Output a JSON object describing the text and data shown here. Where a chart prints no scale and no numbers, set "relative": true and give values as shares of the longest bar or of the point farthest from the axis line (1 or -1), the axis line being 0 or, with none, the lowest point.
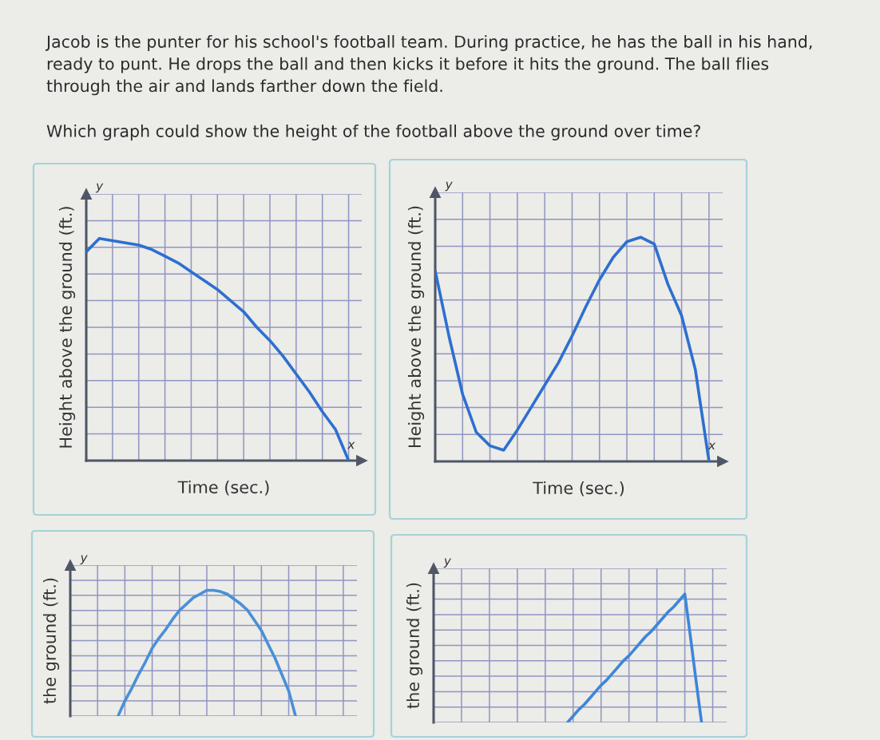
{
  "chart_data": [
    {
      "type": "line",
      "title": "Jacob is the punter for his school's football team. During practice, he has the ball in his hand, ready to punt. He drops the ball and then kicks it before it hits the ground. The ball flies through the air and lands farther down the field.",
      "subtitle": "Which graph could show the height of the football above the ground over time?",
      "xlabel": "Time (sec.)",
      "ylabel": "Height above the ground (ft.)",
      "annotations": [
        "y",
        "x"
      ],
      "relative": true,
      "grid": true,
      "tick_labels": false,
      "categories": [
        null,
        null,
        null,
        null,
        null,
        null,
        null,
        null,
        null,
        null,
        null,
        null,
        null,
        null,
        null,
        null,
        null,
        null,
        null,
        null,
        null
      ],
      "series": [
        {
          "color": "#2e6fd0",
          "values": [
            0.94,
            1.0,
            0.99,
            0.98,
            0.97,
            0.95,
            0.92,
            0.89,
            0.85,
            0.81,
            0.77,
            0.72,
            0.67,
            0.6,
            0.54,
            0.47,
            0.39,
            0.31,
            0.22,
            0.14,
            0
          ]
        }
      ]
    },
    {
      "type": "line",
      "xlabel": "Time (sec.)",
      "ylabel": "Height above the ground (ft.)",
      "annotations": [
        "y",
        "x"
      ],
      "relative": true,
      "grid": true,
      "tick_labels": false,
      "categories": [
        null,
        null,
        null,
        null,
        null,
        null,
        null,
        null,
        null,
        null,
        null,
        null,
        null,
        null,
        null,
        null,
        null,
        null,
        null,
        null,
        null
      ],
      "series": [
        {
          "color": "#2e6fd0",
          "values": [
            0.85,
            0.56,
            0.3,
            0.13,
            0.07,
            0.05,
            0.14,
            0.24,
            0.34,
            0.44,
            0.56,
            0.69,
            0.81,
            0.91,
            0.98,
            1.0,
            0.97,
            0.79,
            0.65,
            0.41,
            0
          ]
        }
      ]
    },
    {
      "type": "line",
      "ylabel": "the ground (ft.)",
      "annotations": [
        "y"
      ],
      "relative": true,
      "grid": true,
      "tick_labels": false,
      "categories": [
        null,
        null,
        null,
        null,
        null,
        null,
        null,
        null,
        null,
        null,
        null,
        null,
        null,
        null,
        null,
        null,
        null,
        null,
        null,
        null,
        null,
        null,
        null,
        null,
        null,
        null,
        null,
        null,
        null,
        null,
        null,
        null,
        null,
        null,
        null,
        null,
        null,
        null,
        null,
        null,
        null
      ],
      "series": [
        {
          "color": "#4a8fd8",
          "values": [
            null,
            null,
            null,
            null,
            null,
            null,
            null,
            0,
            0.12,
            0.22,
            0.33,
            0.43,
            0.54,
            0.62,
            0.69,
            0.77,
            0.84,
            0.89,
            0.94,
            0.97,
            1.0,
            1.0,
            0.99,
            0.97,
            0.93,
            0.89,
            0.84,
            0.76,
            0.68,
            0.57,
            0.46,
            0.33,
            0.2,
            0,
            null,
            null,
            null,
            null,
            null,
            null,
            null
          ]
        }
      ]
    },
    {
      "type": "line",
      "ylabel": "the ground (ft.)",
      "annotations": [
        "y"
      ],
      "relative": true,
      "grid": true,
      "tick_labels": false,
      "categories": [
        null,
        null,
        null,
        null,
        null,
        null,
        null,
        null,
        null,
        null,
        null,
        null,
        null,
        null,
        null,
        null,
        null,
        null,
        null,
        null,
        null,
        null,
        null,
        null,
        null,
        null,
        null,
        null,
        null,
        null,
        null,
        null,
        null,
        null,
        null,
        null,
        null,
        null,
        null,
        null,
        null,
        null,
        null,
        null,
        null,
        null,
        null,
        null,
        null,
        null,
        null
      ],
      "series": [
        {
          "color": "#3d86d9",
          "values": [
            null,
            null,
            null,
            null,
            null,
            null,
            null,
            null,
            null,
            null,
            null,
            null,
            null,
            null,
            null,
            null,
            null,
            null,
            null,
            null,
            null,
            null,
            null,
            null,
            0,
            0.05,
            0.1,
            0.14,
            0.19,
            0.24,
            0.29,
            0.33,
            0.38,
            0.43,
            0.48,
            0.52,
            0.57,
            0.62,
            0.67,
            0.71,
            0.76,
            0.81,
            0.86,
            0.9,
            0.95,
            1,
            0.67,
            0.33,
            0,
            null,
            null
          ]
        }
      ]
    }
  ]
}
